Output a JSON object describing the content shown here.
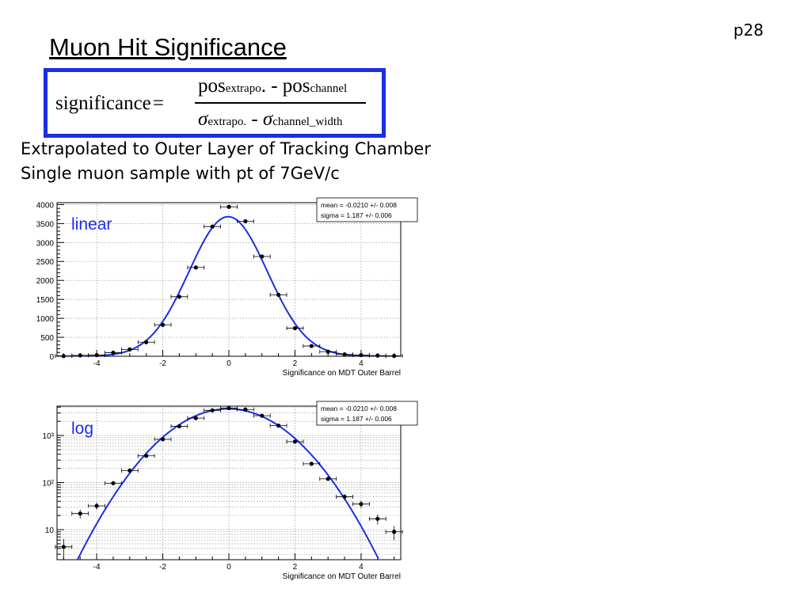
{
  "page_number": "p28",
  "title": "Muon Hit Significance",
  "formula": {
    "lhs": "significance",
    "equals": "=",
    "numerator": {
      "pos1": "pos",
      "sub1": "extrapo",
      "dot": ".",
      "minus": "-",
      "pos2": "pos",
      "sub2": "channel"
    },
    "denominator": {
      "sigma1": "σ",
      "sub1": "extrapo.",
      "minus": "-",
      "sigma2": "σ",
      "sub2": "channel_width"
    }
  },
  "description": {
    "line1": "Extrapolated to Outer Layer of Tracking Chamber",
    "line2": "Single muon sample with pt of 7GeV/c"
  },
  "colors": {
    "formula_border": "#1a2ee6",
    "fit_curve": "#1a2ee6",
    "label_text": "#1a2ee6"
  },
  "chart_data": [
    {
      "type": "scatter",
      "scale": "linear",
      "label": "linear",
      "xlabel": "Significance on MDT Outer Barrel",
      "xlim": [
        -5.2,
        5.2
      ],
      "ylim": [
        0,
        4050
      ],
      "xticks": [
        -4,
        -2,
        0,
        2,
        4
      ],
      "yticks": [
        0,
        500,
        1000,
        1500,
        2000,
        2500,
        3000,
        3500,
        4000
      ],
      "grid": true,
      "stats": {
        "line1": "mean = -0.0210 +/- 0.008",
        "line2": "sigma =  1.187 +/- 0.006"
      },
      "x": [
        -5,
        -4.5,
        -4,
        -3.5,
        -3,
        -2.5,
        -2,
        -1.5,
        -1,
        -0.5,
        0,
        0.5,
        1,
        1.5,
        2,
        2.5,
        3,
        3.5,
        4,
        4.5,
        5
      ],
      "y": [
        4,
        22,
        30,
        95,
        180,
        370,
        830,
        1570,
        2340,
        3420,
        3940,
        3560,
        2630,
        1620,
        740,
        270,
        120,
        50,
        30,
        17,
        8
      ],
      "fit": {
        "amplitude": 3680,
        "mean": -0.021,
        "sigma": 1.187
      }
    },
    {
      "type": "scatter",
      "scale": "log",
      "label": "log",
      "xlabel": "Significance on MDT Outer Barrel",
      "xlim": [
        -5.2,
        5.2
      ],
      "ylim": [
        2.3,
        4200
      ],
      "xticks": [
        -4,
        -2,
        0,
        2,
        4
      ],
      "ytick_labels": [
        "10",
        "10²",
        "10³"
      ],
      "grid": true,
      "stats": {
        "line1": "mean = -0.0210 +/- 0.008",
        "line2": "sigma =  1.187 +/- 0.006"
      },
      "x": [
        -5,
        -4.5,
        -4,
        -3.5,
        -3,
        -2.5,
        -2,
        -1.5,
        -1,
        -0.5,
        0,
        0.5,
        1,
        1.5,
        2,
        2.5,
        3,
        3.5,
        4,
        4.5,
        5
      ],
      "y": [
        4.3,
        22,
        32,
        97,
        180,
        370,
        830,
        1570,
        2340,
        3420,
        3800,
        3560,
        2630,
        1620,
        740,
        250,
        120,
        50,
        35,
        17,
        9
      ],
      "fit": {
        "amplitude": 3680,
        "mean": -0.021,
        "sigma": 1.187
      }
    }
  ]
}
